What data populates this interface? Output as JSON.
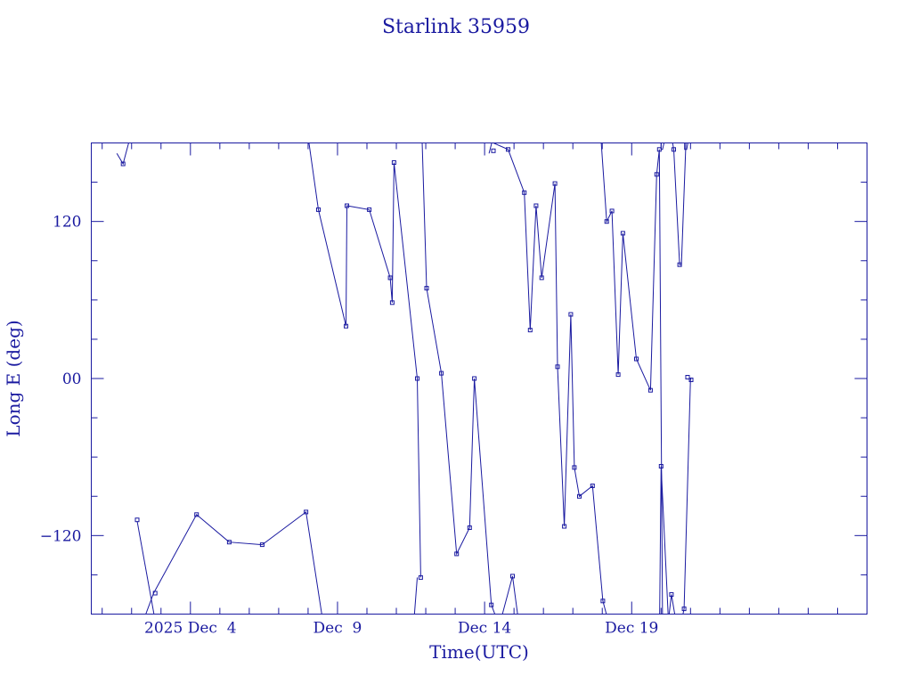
{
  "chart_data": {
    "type": "line",
    "title": "Starlink 35959",
    "xlabel": "Time(UTC)",
    "ylabel": "Long E (deg)",
    "xlim": [
      -2.37,
      24.0
    ],
    "ylim": [
      -180,
      180
    ],
    "x_ticks": [
      {
        "value": 1,
        "label": "2025 Dec  4"
      },
      {
        "value": 6,
        "label": "Dec  9"
      },
      {
        "value": 11,
        "label": "Dec 14"
      },
      {
        "value": 16,
        "label": "Dec 19"
      }
    ],
    "y_ticks": [
      {
        "value": 120,
        "label": "120"
      },
      {
        "value": 0,
        "label": "00"
      },
      {
        "value": -120,
        "label": "−120"
      }
    ],
    "grid": false,
    "legend": "none",
    "segments": [
      [
        [
          -1.5,
          172
        ],
        [
          -1.29,
          164
        ],
        [
          -1.04,
          185
        ]
      ],
      [
        [
          -0.81,
          -109
        ],
        [
          -0.2,
          -185
        ]
      ],
      [
        [
          -0.6,
          -185
        ],
        [
          -0.25,
          -164
        ],
        [
          1.21,
          -104
        ],
        [
          2.32,
          -125
        ],
        [
          3.44,
          -127
        ],
        [
          4.93,
          -102
        ],
        [
          5.5,
          -185
        ]
      ],
      [
        [
          5.0,
          185
        ],
        [
          5.35,
          129
        ],
        [
          6.29,
          40
        ],
        [
          6.32,
          132
        ],
        [
          7.08,
          129
        ],
        [
          7.79,
          77
        ],
        [
          7.86,
          58
        ],
        [
          7.92,
          165
        ],
        [
          8.71,
          0
        ],
        [
          8.83,
          -152
        ]
      ],
      [
        [
          8.6,
          -185
        ],
        [
          8.71,
          -152
        ]
      ],
      [
        [
          8.87,
          185
        ],
        [
          9.03,
          69
        ],
        [
          9.53,
          4
        ],
        [
          10.05,
          -134
        ],
        [
          10.49,
          -114
        ],
        [
          10.65,
          0
        ],
        [
          11.23,
          -173
        ]
      ],
      [
        [
          11.23,
          -173
        ],
        [
          11.5,
          -189
        ]
      ],
      [
        [
          11.5,
          -189
        ],
        [
          11.95,
          -151
        ],
        [
          12.15,
          -185
        ]
      ],
      [
        [
          11.15,
          172
        ],
        [
          11.3,
          185
        ]
      ],
      [
        [
          11.3,
          180
        ],
        [
          11.8,
          175
        ],
        [
          12.35,
          142
        ],
        [
          12.55,
          37
        ],
        [
          12.75,
          132
        ],
        [
          12.94,
          77
        ],
        [
          13.39,
          149
        ],
        [
          13.48,
          9
        ],
        [
          13.71,
          -113
        ],
        [
          13.93,
          49
        ],
        [
          14.05,
          -68
        ],
        [
          14.22,
          -90
        ],
        [
          14.67,
          -82
        ],
        [
          15.02,
          -170
        ],
        [
          15.2,
          -185
        ]
      ],
      [
        [
          14.95,
          185
        ],
        [
          15.15,
          120
        ],
        [
          15.33,
          128
        ],
        [
          15.54,
          3
        ],
        [
          15.7,
          111
        ],
        [
          16.16,
          15
        ],
        [
          16.64,
          -9
        ],
        [
          16.85,
          156
        ],
        [
          16.94,
          175
        ],
        [
          17.05,
          -185
        ]
      ],
      [
        [
          17.25,
          -185
        ],
        [
          17.35,
          -165
        ],
        [
          17.5,
          -185
        ]
      ],
      [
        [
          16.95,
          -185
        ],
        [
          17.0,
          -67
        ],
        [
          17.25,
          -185
        ]
      ],
      [
        [
          17.7,
          -185
        ],
        [
          17.78,
          -176
        ],
        [
          18.0,
          0
        ],
        [
          18.02,
          -1
        ]
      ],
      [
        [
          17.0,
          185
        ],
        [
          17.0,
          175
        ],
        [
          17.05,
          175
        ],
        [
          17.15,
          185
        ]
      ],
      [
        [
          17.35,
          185
        ],
        [
          17.43,
          175
        ],
        [
          17.63,
          87
        ],
        [
          17.69,
          87
        ],
        [
          17.85,
          185
        ]
      ],
      [
        [
          17.8,
          185
        ],
        [
          17.8,
          175
        ],
        [
          17.87,
          175
        ],
        [
          17.95,
          185
        ]
      ]
    ],
    "markers": [
      [
        -1.29,
        164
      ],
      [
        -0.81,
        -108
      ],
      [
        -0.2,
        -164
      ],
      [
        1.21,
        -104
      ],
      [
        2.32,
        -125
      ],
      [
        3.44,
        -127
      ],
      [
        4.93,
        -102
      ],
      [
        5.35,
        129
      ],
      [
        6.29,
        40
      ],
      [
        6.32,
        132
      ],
      [
        7.08,
        129
      ],
      [
        7.79,
        77
      ],
      [
        7.86,
        58
      ],
      [
        7.92,
        165
      ],
      [
        8.71,
        0
      ],
      [
        8.83,
        -152
      ],
      [
        9.03,
        69
      ],
      [
        9.53,
        4
      ],
      [
        10.05,
        -134
      ],
      [
        10.49,
        -114
      ],
      [
        10.65,
        0
      ],
      [
        11.23,
        -173
      ],
      [
        11.95,
        -151
      ],
      [
        11.3,
        174
      ],
      [
        11.8,
        175
      ],
      [
        12.35,
        142
      ],
      [
        12.55,
        37
      ],
      [
        12.75,
        132
      ],
      [
        12.94,
        77
      ],
      [
        13.39,
        149
      ],
      [
        13.48,
        9
      ],
      [
        13.71,
        -113
      ],
      [
        13.93,
        49
      ],
      [
        14.05,
        -68
      ],
      [
        14.22,
        -90
      ],
      [
        14.67,
        -82
      ],
      [
        15.02,
        -170
      ],
      [
        15.15,
        120
      ],
      [
        15.33,
        128
      ],
      [
        15.54,
        3
      ],
      [
        15.7,
        111
      ],
      [
        16.16,
        15
      ],
      [
        16.64,
        -9
      ],
      [
        16.85,
        156
      ],
      [
        16.94,
        175
      ],
      [
        17.0,
        -67
      ],
      [
        17.35,
        -165
      ],
      [
        17.43,
        175
      ],
      [
        17.63,
        87
      ],
      [
        17.78,
        -176
      ],
      [
        17.9,
        1
      ],
      [
        18.02,
        -1
      ]
    ]
  }
}
